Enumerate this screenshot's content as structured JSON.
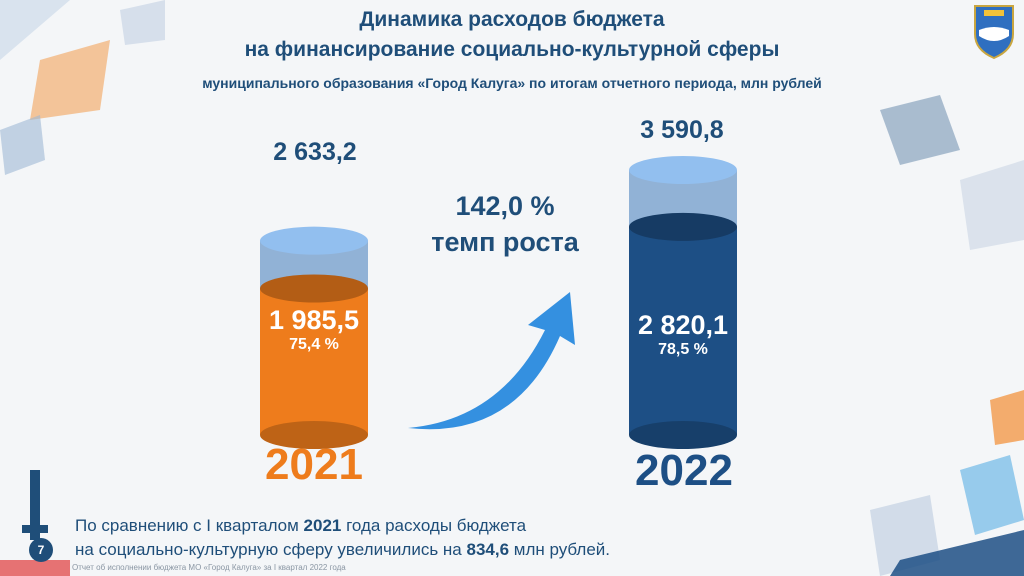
{
  "title": {
    "line1": "Динамика расходов бюджета",
    "line2": "на финансирование социально-культурной сферы",
    "subtitle": "муниципального образования «Город Калуга» по итогам отчетного периода, млн рублей"
  },
  "chart_data": {
    "type": "bar",
    "categories": [
      "2021",
      "2022"
    ],
    "series": [
      {
        "values": [
          2633.2,
          3590.8
        ]
      },
      {
        "values": [
          1985.5,
          2820.1
        ]
      }
    ],
    "value_labels": {
      "totals": [
        "2 633,2",
        "3 590,8"
      ],
      "executed": [
        "1 985,5",
        "2 820,1"
      ],
      "percent": [
        "75,4 %",
        "78,5 %"
      ]
    },
    "growth": {
      "value": "142,0 %",
      "label": "темп роста"
    },
    "colors": {
      "2021_fill": "#ee7c1c",
      "2022_fill": "#1d4f85",
      "capacity": "#7fa6d0",
      "arrow": "#3490e0"
    }
  },
  "note": {
    "part1": "По сравнению с I кварталом ",
    "year": "2021",
    "part2": " года расходы бюджета",
    "part3": "на социально-культурную сферу увеличились на ",
    "amount": "834,6",
    "part4": " млн рублей."
  },
  "footer": "Отчет об исполнении бюджета МО «Город Калуга» за I квартал 2022 года",
  "page_number": "7"
}
